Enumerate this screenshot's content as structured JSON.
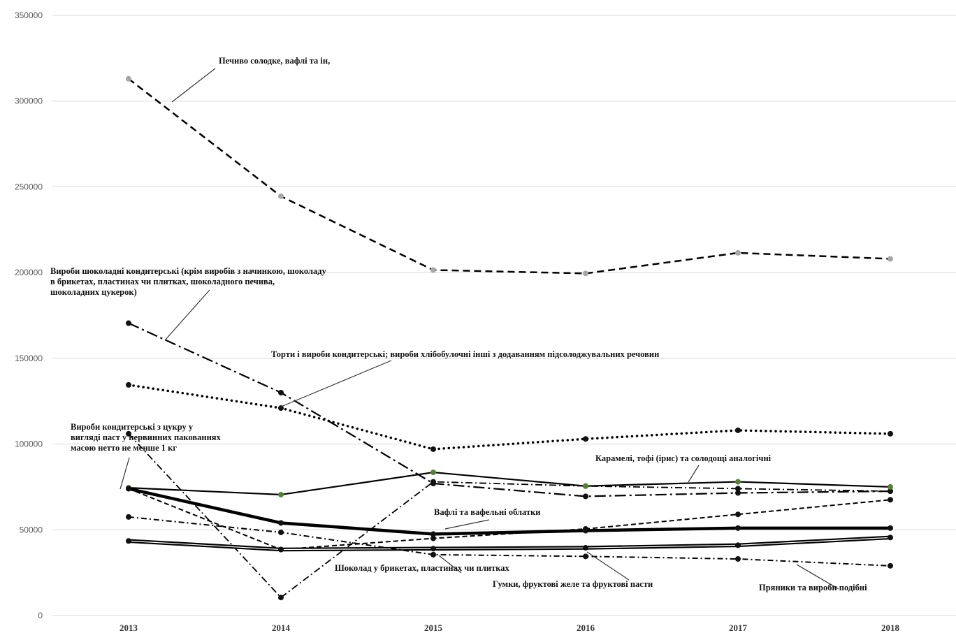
{
  "chart_data": {
    "type": "line",
    "x": [
      "2013",
      "2014",
      "2015",
      "2016",
      "2017",
      "2018"
    ],
    "ylim": [
      0,
      350000
    ],
    "yticks": [
      0,
      50000,
      100000,
      150000,
      200000,
      250000,
      300000,
      350000
    ],
    "ytick_labels": [
      "0",
      "50000",
      "100000",
      "150000",
      "200000",
      "250000",
      "300000",
      "350000"
    ],
    "grid": "horizontal",
    "legend": "none",
    "series": [
      {
        "name": "Печиво солодке, вафлі та ін,",
        "values": [
          313000,
          244500,
          201500,
          199500,
          211500,
          208000
        ],
        "style": "dashed-long",
        "marker_color": "#a6a6a6"
      },
      {
        "name": "Вироби шоколадні кондитерські (крім виробів з начинкою, шоколаду в брикетах, пластинах чи плитках, шоколадного печива, шоколадних цукерок)",
        "values": [
          170500,
          130000,
          77000,
          69500,
          71500,
          72500
        ],
        "style": "dash-dot-long",
        "marker_color": "#111111"
      },
      {
        "name": "Торти і вироби кондитерські; вироби хлібобулочні інші з додаванням підсолоджувальних речовин",
        "values": [
          134500,
          121000,
          97000,
          103000,
          108000,
          106000
        ],
        "style": "dotted",
        "marker_color": "#111111"
      },
      {
        "name": "Вироби кондитерські з цукру у вигляді паст у первинних пакованнях масою нетто не менше 1 кг",
        "values": [
          106000,
          10500,
          78000,
          75500,
          74000,
          72500
        ],
        "style": "dash-dot",
        "marker_color": "#111111"
      },
      {
        "name": "Карамелі, тофі (ірис) та солодощі аналогічні",
        "values": [
          74500,
          70500,
          83500,
          75500,
          78000,
          75000
        ],
        "style": "solid",
        "marker_color": "#548235"
      },
      {
        "name": "Вафлі та вафельні облатки",
        "values": [
          74000,
          54000,
          47500,
          49500,
          51000,
          51000
        ],
        "style": "solid-thick",
        "marker_color": "#111111"
      },
      {
        "name": "Шоколад у брикетах, пластинах чи плитках",
        "values": [
          74000,
          38500,
          45000,
          50500,
          59000,
          67500
        ],
        "style": "dashed",
        "marker_color": "#111111"
      },
      {
        "name": "Гумки, фруктові желе та фруктові пасти",
        "values": [
          43500,
          38500,
          39000,
          39500,
          41000,
          45500
        ],
        "style": "solid-double",
        "marker_color": "#111111"
      },
      {
        "name": "Пряники та вироби подібні",
        "values": [
          57500,
          48500,
          35500,
          34500,
          33000,
          29000
        ],
        "style": "dash-dot-short",
        "marker_color": "#111111"
      }
    ],
    "annotations": [
      {
        "lines": [
          "Печиво солодке, вафлі та ін,"
        ]
      },
      {
        "lines": [
          "Вироби шоколадні кондитерські (крім виробів з начинкою, шоколаду",
          " в брикетах, пластинах чи плитках, шоколадного печива,",
          "шоколадних цукерок)"
        ]
      },
      {
        "lines": [
          "Торти і вироби кондитерські; вироби хлібобулочні інші з додаванням підсолоджувальних речовин"
        ]
      },
      {
        "lines": [
          "Вироби кондитерські з цукру у",
          "вигляді паст у первинних пакованнях",
          "масою нетто не менше 1 кг"
        ]
      },
      {
        "lines": [
          "Карамелі, тофі (ірис) та солодощі аналогічні"
        ]
      },
      {
        "lines": [
          "Вафлі та вафельні облатки"
        ]
      },
      {
        "lines": [
          "Шоколад у брикетах, пластинах чи плитках"
        ]
      },
      {
        "lines": [
          "Гумки, фруктові желе та фруктові пасти"
        ]
      },
      {
        "lines": [
          "Пряники та вироби подібні"
        ]
      }
    ]
  }
}
